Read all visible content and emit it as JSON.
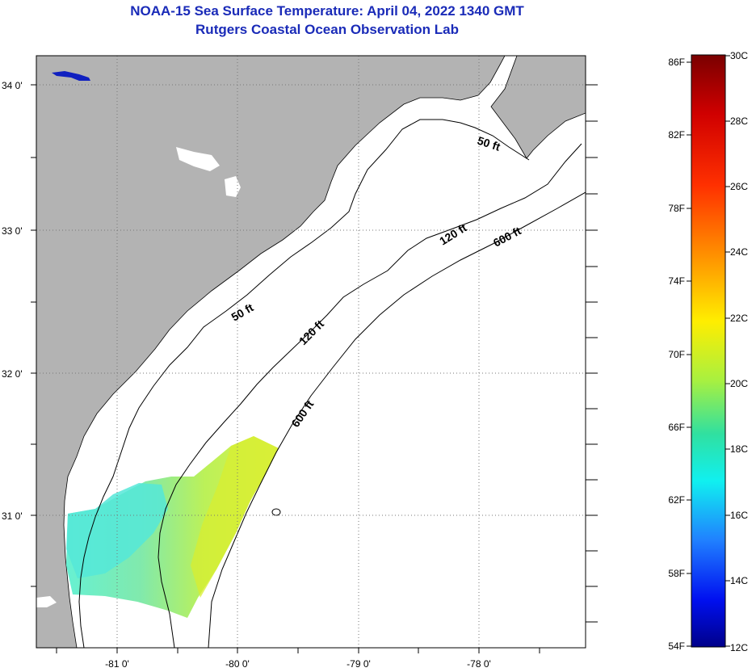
{
  "header": {
    "title": "NOAA-15 Sea Surface Temperature:  April 04, 2022 1340 GMT",
    "subtitle": "Rutgers Coastal Ocean Observation Lab"
  },
  "map": {
    "lon_range": [
      -81.67,
      -77.2
    ],
    "lat_range": [
      30.1,
      34.2
    ],
    "lat_labels": [
      "34 0'",
      "33 0'",
      "32 0'",
      "31 0'"
    ],
    "lon_labels": [
      "-81 0'",
      "-80 0'",
      "-79 0'",
      "-78 0'"
    ],
    "contours": [
      {
        "label": "50 ft"
      },
      {
        "label": "50 ft"
      },
      {
        "label": "120 ft"
      },
      {
        "label": "120 ft"
      },
      {
        "label": "600 ft"
      },
      {
        "label": "600 ft"
      }
    ],
    "colors": {
      "land": "#b3b3b3",
      "ocean_nodata": "#ffffff",
      "grid": "#777777"
    }
  },
  "colorbar": {
    "fahrenheit_labels": [
      "86F",
      "82F",
      "78F",
      "74F",
      "70F",
      "66F",
      "62F",
      "58F",
      "54F"
    ],
    "celsius_labels": [
      "30C",
      "28C",
      "26C",
      "24C",
      "22C",
      "20C",
      "18C",
      "16C",
      "14C",
      "12C"
    ],
    "range_c": [
      12,
      30
    ]
  }
}
